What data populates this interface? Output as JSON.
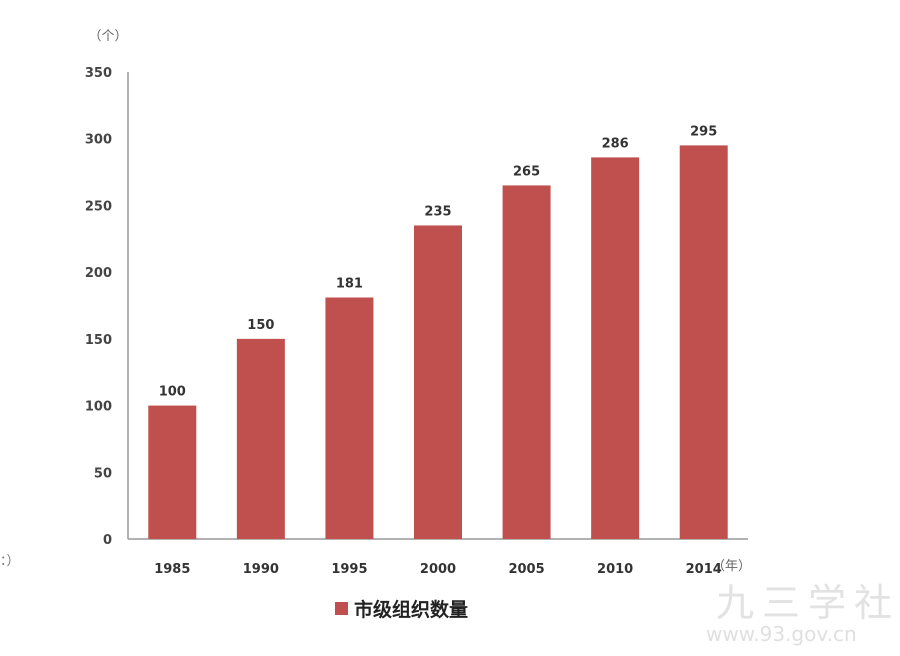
{
  "chart_data": {
    "type": "bar",
    "categories": [
      "1985",
      "1990",
      "1995",
      "2000",
      "2005",
      "2010",
      "2014"
    ],
    "series": [
      {
        "name": "市级组织数量",
        "values": [
          100,
          150,
          181,
          235,
          265,
          286,
          295
        ],
        "color": "#c0504d"
      }
    ],
    "ylabel": "（个）",
    "xlabel": "（年）",
    "ylim": [
      0,
      350
    ],
    "yticks": [
      0,
      50,
      100,
      150,
      200,
      250,
      300,
      350
    ],
    "grid": false,
    "legend": "bottom"
  },
  "watermark": {
    "text": "九三学社",
    "url": "www.93.gov.cn"
  },
  "fragment": "：）"
}
